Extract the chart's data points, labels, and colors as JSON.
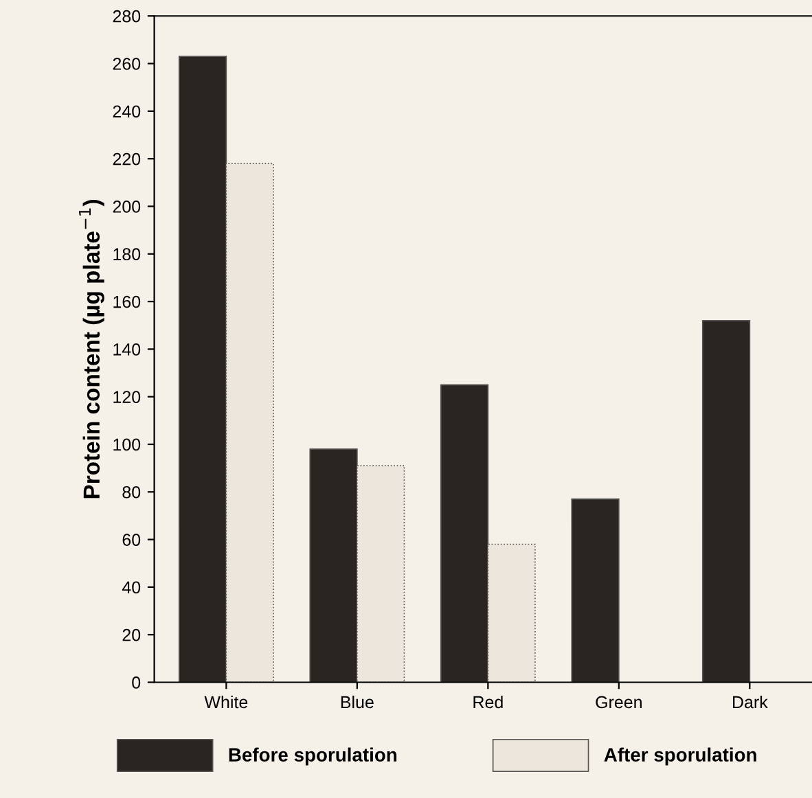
{
  "chart_data": {
    "type": "bar",
    "ylabel": "Protein content (µg plate$^{−1}$)",
    "categories": [
      "White",
      "Blue",
      "Red",
      "Green",
      "Dark"
    ],
    "series": [
      {
        "name": "Before sporulation",
        "color": "#2b2521",
        "values": [
          263,
          98,
          125,
          77,
          152
        ]
      },
      {
        "name": "After sporulation",
        "color": "#ece6dc",
        "values": [
          218,
          91,
          58,
          null,
          null
        ]
      }
    ],
    "ylim": [
      0,
      280
    ],
    "yticks": [
      0,
      20,
      40,
      60,
      80,
      100,
      120,
      140,
      160,
      180,
      200,
      220,
      240,
      260,
      280
    ],
    "grid": false,
    "legend": "bottom"
  }
}
